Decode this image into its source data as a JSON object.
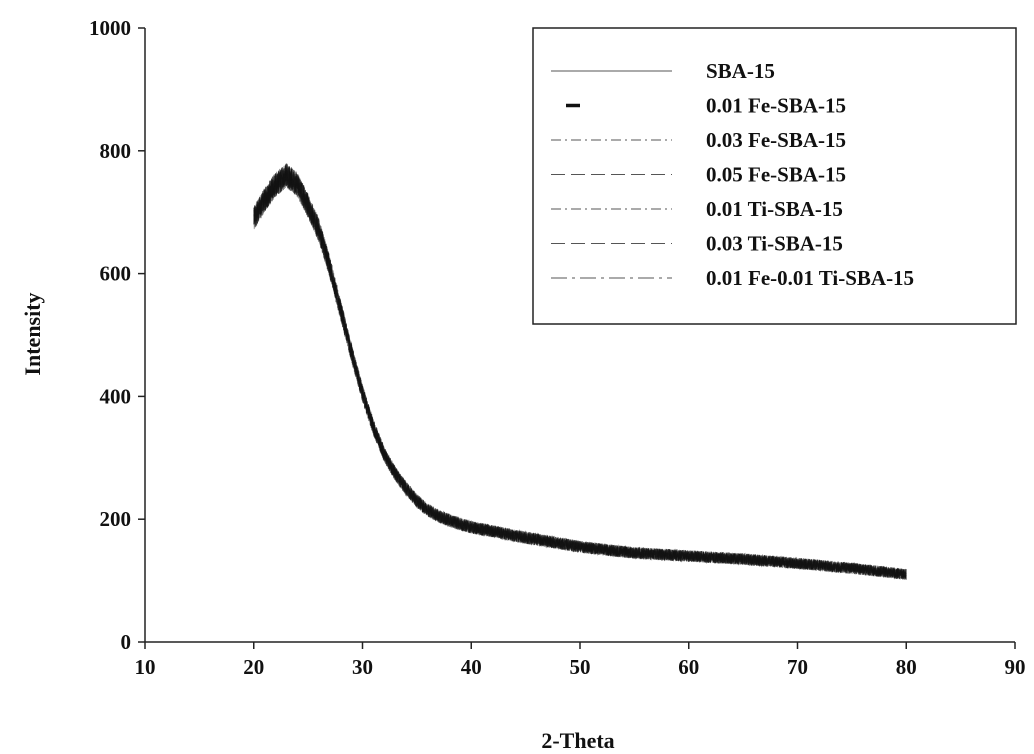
{
  "chart_data": {
    "type": "line",
    "title": "",
    "xlabel": "2-Theta",
    "ylabel": "Intensity",
    "xlim": [
      10,
      90
    ],
    "ylim": [
      0,
      1000
    ],
    "x_ticks": [
      "10",
      "20",
      "30",
      "40",
      "50",
      "60",
      "70",
      "80",
      "90"
    ],
    "y_ticks": [
      "0",
      "200",
      "400",
      "600",
      "800",
      "1000"
    ],
    "grid": false,
    "legend_position": "top-right",
    "colors": {
      "line": "#111111",
      "axis": "#222222",
      "background": "#ffffff"
    },
    "series": [
      {
        "name": "SBA-15",
        "dash": "solid"
      },
      {
        "name": "0.01 Fe-SBA-15",
        "dash": "short"
      },
      {
        "name": "0.03 Fe-SBA-15",
        "dash": "dash-dot"
      },
      {
        "name": "0.05 Fe-SBA-15",
        "dash": "long-dash"
      },
      {
        "name": "0.01 Ti-SBA-15",
        "dash": "dash-dot"
      },
      {
        "name": "0.03 Ti-SBA-15",
        "dash": "long-dash"
      },
      {
        "name": "0.01 Fe-0.01 Ti-SBA-15",
        "dash": "long-dash-dot"
      }
    ],
    "curve": {
      "x": [
        20,
        21,
        22,
        23,
        24,
        25,
        26,
        27,
        28,
        29,
        30,
        31,
        32,
        33,
        34,
        35,
        36,
        37,
        38,
        39,
        40,
        42,
        45,
        50,
        55,
        60,
        65,
        70,
        75,
        80
      ],
      "y": [
        690,
        720,
        745,
        760,
        745,
        710,
        670,
        610,
        540,
        470,
        405,
        350,
        305,
        275,
        250,
        230,
        215,
        205,
        198,
        192,
        187,
        180,
        170,
        155,
        145,
        140,
        135,
        128,
        120,
        110
      ],
      "noise_amplitude": 40
    }
  }
}
